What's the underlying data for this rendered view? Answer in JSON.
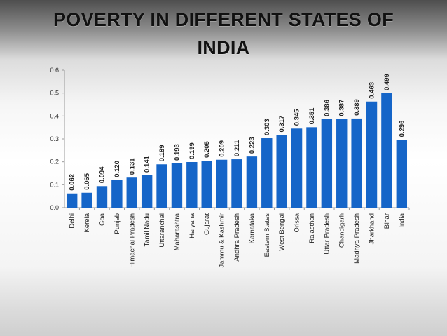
{
  "header": {
    "title_line1": "POVERTY IN DIFFERENT STATES OF",
    "title_line2": "INDIA"
  },
  "chart_data": {
    "type": "bar",
    "title": "POVERTY IN DIFFERENT STATES OF INDIA",
    "xlabel": "",
    "ylabel": "",
    "ylim": [
      0,
      0.6
    ],
    "yticks": [
      "0.0",
      "0.1",
      "0.2",
      "0.3",
      "0.4",
      "0.5",
      "0.6"
    ],
    "grid": false,
    "legend": "none",
    "bar_color": "#1565c8",
    "categories": [
      "Delhi",
      "Kerela",
      "Goa",
      "Punjab",
      "Himachal Pradesh",
      "Tamil Nadu",
      "Uttaranchal",
      "Maharashtra",
      "Haryana",
      "Gujarat",
      "Jammu & Kashmir",
      "Andhra Pradesh",
      "Karnataka",
      "Eastern States",
      "West Bengal",
      "Orissa",
      "Rajasthan",
      "Uttar Pradesh",
      "Chandigarh",
      "Madhya Pradesh",
      "Jharkhand",
      "Bihar",
      "India"
    ],
    "values": [
      0.062,
      0.065,
      0.094,
      0.12,
      0.131,
      0.141,
      0.189,
      0.193,
      0.199,
      0.205,
      0.209,
      0.211,
      0.223,
      0.303,
      0.317,
      0.345,
      0.351,
      0.386,
      0.387,
      0.389,
      0.463,
      0.499,
      0.296
    ],
    "value_labels": [
      "0.062",
      "0.065",
      "0.094",
      "0.120",
      "0.131",
      "0.141",
      "0.189",
      "0.193",
      "0.199",
      "0.205",
      "0.209",
      "0.211",
      "0.223",
      "0.303",
      "0.317",
      "0.345",
      "0.351",
      "0.386",
      "0.387",
      "0.389",
      "0.463",
      "0.499",
      "0.296"
    ]
  }
}
